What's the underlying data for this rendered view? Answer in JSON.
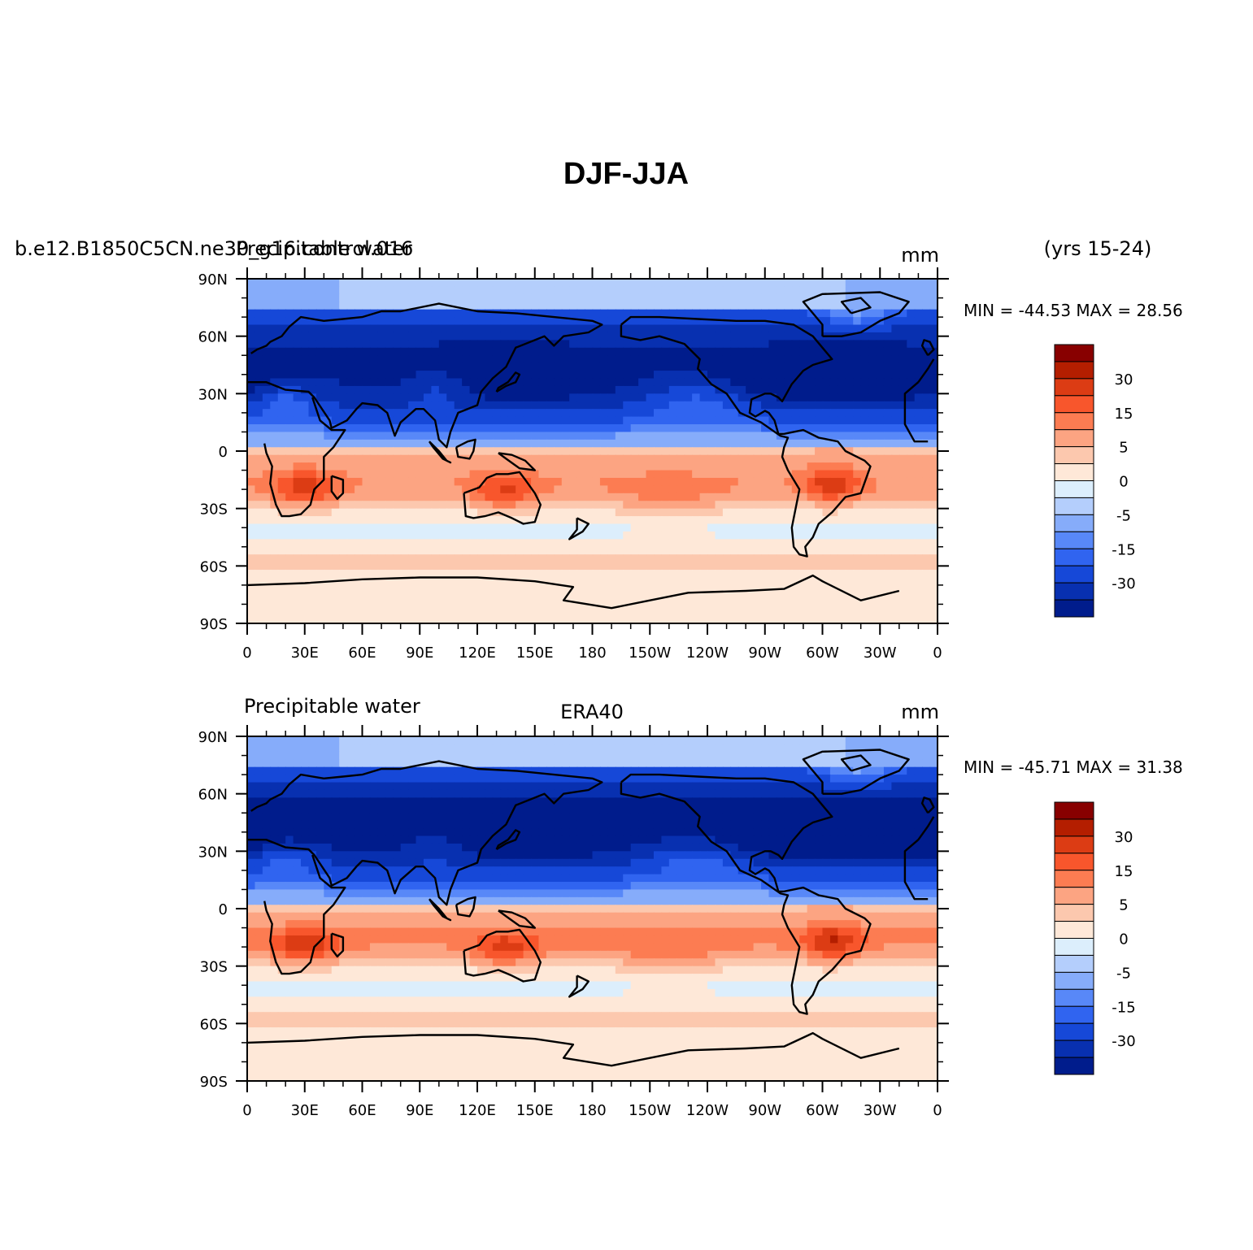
{
  "title": "DJF-JJA",
  "panels": [
    {
      "left_label_case": "b.e12.B1850C5CN.ne30_g16.control.016",
      "left_label_var": "Precipitable water",
      "center_label": "",
      "right_label": "mm",
      "years_label": "(yrs 15-24)",
      "min_max": "MIN = -44.53  MAX =  28.56"
    },
    {
      "left_label_case": "",
      "left_label_var": "Precipitable water",
      "center_label": "ERA40",
      "right_label": "mm",
      "years_label": "",
      "min_max": "MIN = -45.71  MAX =  31.38"
    }
  ],
  "axes": {
    "lat_labels": [
      "90N",
      "60N",
      "30N",
      "0",
      "30S",
      "60S",
      "90S"
    ],
    "lon_labels": [
      "0",
      "30E",
      "60E",
      "90E",
      "120E",
      "150E",
      "180",
      "150W",
      "120W",
      "90W",
      "60W",
      "30W",
      "0"
    ]
  },
  "colorbar": {
    "labels": [
      "30",
      "15",
      "5",
      "0",
      "-5",
      "-15",
      "-30"
    ],
    "colors": [
      "#880000",
      "#b41e00",
      "#dc3c14",
      "#f8562c",
      "#fc7c52",
      "#fca482",
      "#fcc8ae",
      "#fee8d8",
      "#dceefc",
      "#b4cefc",
      "#86acfa",
      "#5888f8",
      "#3064f0",
      "#1648d8",
      "#0830b0",
      "#001c8c"
    ]
  },
  "chart_data": {
    "type": "heatmap",
    "variable": "Precipitable water",
    "season": "DJF-JJA",
    "units": "mm",
    "x_range": [
      0,
      360
    ],
    "y_range": [
      -90,
      90
    ],
    "panels": [
      {
        "dataset": "b.e12.B1850C5CN.ne30_g16.control.016",
        "period": "(yrs 15-24)",
        "min": -44.53,
        "max": 28.56
      },
      {
        "dataset": "ERA40",
        "min": -45.71,
        "max": 31.38
      }
    ]
  }
}
